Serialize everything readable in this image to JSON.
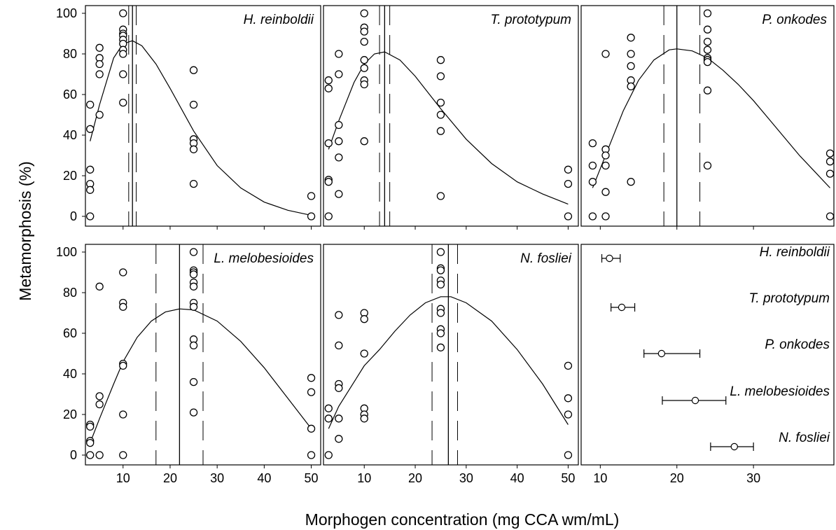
{
  "figure": {
    "ylabel": "Metamorphosis (%)",
    "xlabel": "Morphogen concentration (mg CCA wm/mL)"
  },
  "chart_data": [
    {
      "type": "scatter",
      "title": "H. reinboldii",
      "xlim": [
        2,
        52
      ],
      "ylim": [
        -5,
        105
      ],
      "xticks": [
        10,
        20,
        30,
        40,
        50
      ],
      "yticks": [
        0,
        20,
        40,
        60,
        80,
        100
      ],
      "points": [
        [
          3,
          55
        ],
        [
          3,
          43
        ],
        [
          3,
          23
        ],
        [
          3,
          16
        ],
        [
          3,
          13
        ],
        [
          3,
          0
        ],
        [
          5,
          83
        ],
        [
          5,
          78
        ],
        [
          5,
          75
        ],
        [
          5,
          70
        ],
        [
          5,
          50
        ],
        [
          10,
          100
        ],
        [
          10,
          92
        ],
        [
          10,
          90
        ],
        [
          10,
          89
        ],
        [
          10,
          87
        ],
        [
          10,
          85
        ],
        [
          10,
          82
        ],
        [
          10,
          80
        ],
        [
          10,
          70
        ],
        [
          10,
          56
        ],
        [
          25,
          72
        ],
        [
          25,
          55
        ],
        [
          25,
          38
        ],
        [
          25,
          36
        ],
        [
          25,
          33
        ],
        [
          25,
          16
        ],
        [
          50,
          10
        ],
        [
          50,
          0
        ]
      ],
      "curve": [
        [
          3,
          37
        ],
        [
          5,
          55
        ],
        [
          8,
          78
        ],
        [
          10,
          85
        ],
        [
          12,
          86.5
        ],
        [
          14,
          84
        ],
        [
          17,
          75
        ],
        [
          20,
          63
        ],
        [
          25,
          42
        ],
        [
          30,
          25
        ],
        [
          35,
          14
        ],
        [
          40,
          7
        ],
        [
          45,
          3
        ],
        [
          50,
          0.5
        ]
      ],
      "optimum": 12,
      "ci": [
        11.2,
        12.8
      ]
    },
    {
      "type": "scatter",
      "title": "T. prototypum",
      "xlim": [
        2,
        52
      ],
      "ylim": [
        -5,
        105
      ],
      "xticks": [
        10,
        20,
        30,
        40,
        50
      ],
      "yticks": [
        0,
        20,
        40,
        60,
        80,
        100
      ],
      "points": [
        [
          3,
          67
        ],
        [
          3,
          63
        ],
        [
          3,
          36
        ],
        [
          3,
          18
        ],
        [
          3,
          17
        ],
        [
          3,
          0
        ],
        [
          5,
          80
        ],
        [
          5,
          70
        ],
        [
          5,
          45
        ],
        [
          5,
          37
        ],
        [
          5,
          29
        ],
        [
          5,
          11
        ],
        [
          10,
          100
        ],
        [
          10,
          93
        ],
        [
          10,
          91
        ],
        [
          10,
          86
        ],
        [
          10,
          77
        ],
        [
          10,
          73
        ],
        [
          10,
          67
        ],
        [
          10,
          65
        ],
        [
          10,
          37
        ],
        [
          25,
          77
        ],
        [
          25,
          69
        ],
        [
          25,
          56
        ],
        [
          25,
          50
        ],
        [
          25,
          42
        ],
        [
          25,
          10
        ],
        [
          50,
          23
        ],
        [
          50,
          16
        ],
        [
          50,
          0
        ]
      ],
      "curve": [
        [
          3,
          33
        ],
        [
          5,
          47
        ],
        [
          8,
          66
        ],
        [
          10,
          75
        ],
        [
          12,
          80
        ],
        [
          14,
          81
        ],
        [
          17,
          77
        ],
        [
          20,
          69
        ],
        [
          25,
          53
        ],
        [
          30,
          38
        ],
        [
          35,
          26
        ],
        [
          40,
          17
        ],
        [
          45,
          11
        ],
        [
          50,
          6
        ]
      ],
      "optimum": 14,
      "ci": [
        13,
        15
      ]
    },
    {
      "type": "scatter",
      "title": "P. onkodes",
      "xlim": [
        7.5,
        40.5
      ],
      "ylim": [
        -5,
        105
      ],
      "xticks": [
        10,
        20,
        30
      ],
      "yticks": [
        0,
        20,
        40,
        60,
        80,
        100
      ],
      "points": [
        [
          9,
          36
        ],
        [
          9,
          25
        ],
        [
          9,
          17
        ],
        [
          9,
          0
        ],
        [
          10.7,
          80
        ],
        [
          10.7,
          33
        ],
        [
          10.7,
          30
        ],
        [
          10.7,
          25
        ],
        [
          10.7,
          12
        ],
        [
          10.7,
          0
        ],
        [
          14,
          88
        ],
        [
          14,
          80
        ],
        [
          14,
          74
        ],
        [
          14,
          67
        ],
        [
          14,
          64
        ],
        [
          14,
          17
        ],
        [
          24,
          100
        ],
        [
          24,
          92
        ],
        [
          24,
          86
        ],
        [
          24,
          82
        ],
        [
          24,
          78
        ],
        [
          24,
          77
        ],
        [
          24,
          76
        ],
        [
          24,
          62
        ],
        [
          24,
          25
        ],
        [
          40,
          31
        ],
        [
          40,
          27
        ],
        [
          40,
          21
        ],
        [
          40,
          0
        ]
      ],
      "curve": [
        [
          9,
          14
        ],
        [
          11,
          33
        ],
        [
          13,
          52
        ],
        [
          15,
          67
        ],
        [
          17,
          77
        ],
        [
          19,
          82
        ],
        [
          20,
          82.5
        ],
        [
          22,
          81.5
        ],
        [
          24,
          78
        ],
        [
          26,
          72
        ],
        [
          28,
          65
        ],
        [
          30,
          57
        ],
        [
          32,
          48
        ],
        [
          34,
          39
        ],
        [
          36,
          30
        ],
        [
          38,
          22
        ],
        [
          40,
          14
        ]
      ],
      "optimum": 20,
      "ci": [
        18.3,
        23
      ]
    },
    {
      "type": "scatter",
      "title": "L. melobesioides",
      "xlim": [
        2,
        52
      ],
      "ylim": [
        -5,
        105
      ],
      "xticks": [
        10,
        20,
        30,
        40,
        50
      ],
      "yticks": [
        0,
        20,
        40,
        60,
        80,
        100
      ],
      "points": [
        [
          3,
          15
        ],
        [
          3,
          14
        ],
        [
          3,
          7
        ],
        [
          3,
          6
        ],
        [
          3,
          0
        ],
        [
          5,
          83
        ],
        [
          5,
          29
        ],
        [
          5,
          25
        ],
        [
          5,
          0
        ],
        [
          10,
          90
        ],
        [
          10,
          75
        ],
        [
          10,
          73
        ],
        [
          10,
          45
        ],
        [
          10,
          44
        ],
        [
          10,
          20
        ],
        [
          10,
          0
        ],
        [
          25,
          100
        ],
        [
          25,
          91
        ],
        [
          25,
          90
        ],
        [
          25,
          89
        ],
        [
          25,
          85
        ],
        [
          25,
          83
        ],
        [
          25,
          75
        ],
        [
          25,
          73
        ],
        [
          25,
          57
        ],
        [
          25,
          54
        ],
        [
          25,
          36
        ],
        [
          25,
          21
        ],
        [
          50,
          38
        ],
        [
          50,
          31
        ],
        [
          50,
          13
        ],
        [
          50,
          0
        ]
      ],
      "curve": [
        [
          3,
          6
        ],
        [
          5,
          18
        ],
        [
          8,
          35
        ],
        [
          10,
          46
        ],
        [
          13,
          58
        ],
        [
          16,
          66
        ],
        [
          19,
          70.5
        ],
        [
          22,
          72
        ],
        [
          25,
          71.5
        ],
        [
          30,
          66
        ],
        [
          35,
          56
        ],
        [
          40,
          43
        ],
        [
          45,
          28
        ],
        [
          50,
          13
        ]
      ],
      "optimum": 22,
      "ci": [
        17,
        27
      ]
    },
    {
      "type": "scatter",
      "title": "N. fosliei",
      "xlim": [
        2,
        52
      ],
      "ylim": [
        -5,
        105
      ],
      "xticks": [
        10,
        20,
        30,
        40,
        50
      ],
      "yticks": [
        0,
        20,
        40,
        60,
        80,
        100
      ],
      "points": [
        [
          3,
          23
        ],
        [
          3,
          18
        ],
        [
          3,
          0
        ],
        [
          5,
          69
        ],
        [
          5,
          54
        ],
        [
          5,
          35
        ],
        [
          5,
          33
        ],
        [
          5,
          18
        ],
        [
          5,
          8
        ],
        [
          10,
          70
        ],
        [
          10,
          67
        ],
        [
          10,
          50
        ],
        [
          10,
          23
        ],
        [
          10,
          20
        ],
        [
          10,
          18
        ],
        [
          25,
          100
        ],
        [
          25,
          92
        ],
        [
          25,
          91
        ],
        [
          25,
          86
        ],
        [
          25,
          84
        ],
        [
          25,
          72
        ],
        [
          25,
          70
        ],
        [
          25,
          62
        ],
        [
          25,
          60
        ],
        [
          25,
          53
        ],
        [
          50,
          44
        ],
        [
          50,
          28
        ],
        [
          50,
          20
        ],
        [
          50,
          0
        ]
      ],
      "curve": [
        [
          3,
          13
        ],
        [
          5,
          24
        ],
        [
          8,
          36
        ],
        [
          10,
          44
        ],
        [
          13,
          52
        ],
        [
          16,
          61
        ],
        [
          19,
          69
        ],
        [
          22,
          75
        ],
        [
          25,
          78
        ],
        [
          27,
          78
        ],
        [
          30,
          75
        ],
        [
          35,
          66
        ],
        [
          40,
          52
        ],
        [
          45,
          35
        ],
        [
          50,
          15
        ]
      ],
      "optimum": 26.5,
      "ci": [
        23.3,
        28.3
      ]
    },
    {
      "type": "scatter",
      "title": "",
      "xlim": [
        7.5,
        40.5
      ],
      "xticks": [
        10,
        20,
        30
      ],
      "rows": [
        {
          "label": "H. reinboldii",
          "x": 11.2,
          "lo": 10.2,
          "hi": 12.6
        },
        {
          "label": "T. prototypum",
          "x": 12.8,
          "lo": 11.4,
          "hi": 14.5
        },
        {
          "label": "P. onkodes",
          "x": 18,
          "lo": 15.7,
          "hi": 23
        },
        {
          "label": "L. melobesioides",
          "x": 22.4,
          "lo": 18.1,
          "hi": 26.4
        },
        {
          "label": "N. fosliei",
          "x": 27.5,
          "lo": 24.4,
          "hi": 30
        }
      ]
    }
  ]
}
